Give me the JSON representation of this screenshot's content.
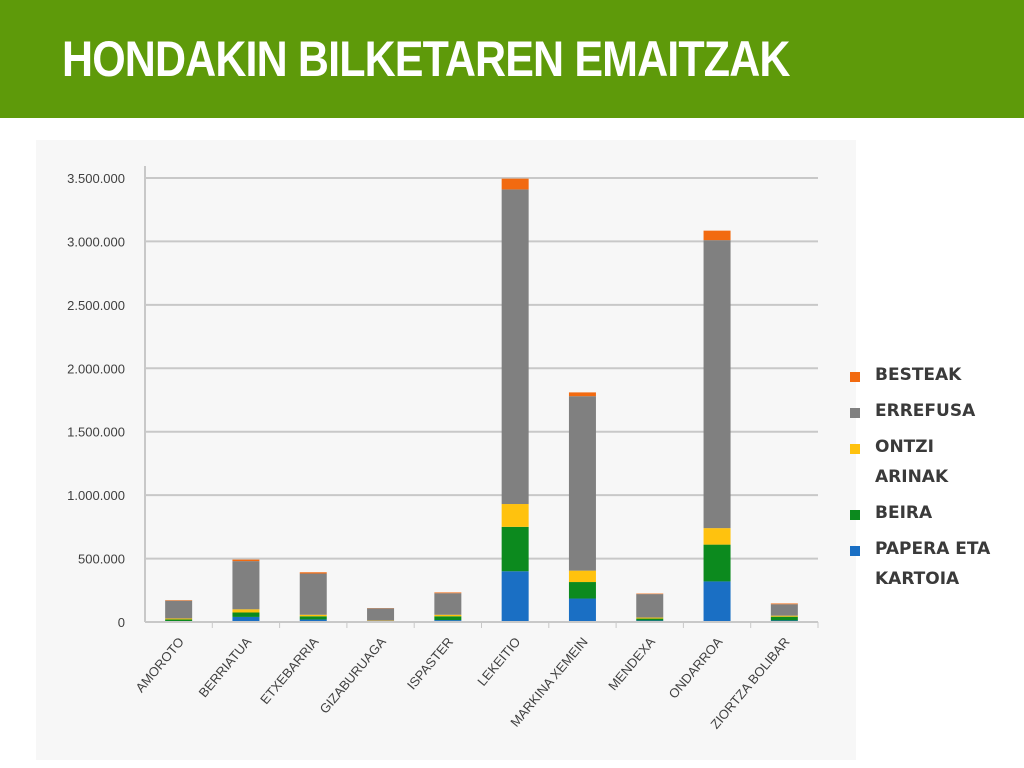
{
  "header": {
    "title": "HONDAKIN BILKETAREN EMAITZAK",
    "background_color": "#5e9a0a"
  },
  "chart_data": {
    "type": "bar",
    "stacked": true,
    "categories": [
      "AMOROTO",
      "BERRIATUA",
      "ETXEBARRIA",
      "GIZABURUAGA",
      "ISPASTER",
      "LEKEITIO",
      "MARKINA XEMEIN",
      "MENDEXA",
      "ONDARROA",
      "ZIORTZA BOLIBAR"
    ],
    "series": [
      {
        "name": "PAPERA ETA KARTOIA",
        "color": "#1a6fc4",
        "values": [
          5000,
          40000,
          20000,
          4000,
          15000,
          400000,
          185000,
          12000,
          320000,
          12000
        ]
      },
      {
        "name": "BEIRA",
        "color": "#0c8a1e",
        "values": [
          15000,
          35000,
          25000,
          4000,
          30000,
          350000,
          130000,
          15000,
          290000,
          30000
        ]
      },
      {
        "name": "ONTZI ARINAK",
        "color": "#ffc20e",
        "values": [
          8000,
          25000,
          12000,
          3000,
          12000,
          180000,
          90000,
          8000,
          130000,
          8000
        ]
      },
      {
        "name": "ERREFUSA",
        "color": "#808080",
        "values": [
          140000,
          380000,
          325000,
          97000,
          170000,
          2480000,
          1375000,
          185000,
          2270000,
          90000
        ]
      },
      {
        "name": "BESTEAK",
        "color": "#f26a10",
        "values": [
          4000,
          12000,
          10000,
          2000,
          6000,
          85000,
          30000,
          4000,
          75000,
          6000
        ]
      }
    ],
    "legend_order": [
      "BESTEAK",
      "ERREFUSA",
      "ONTZI ARINAK",
      "BEIRA",
      "PAPERA ETA KARTOIA"
    ],
    "legend_position": "right",
    "y_ticks": [
      "0",
      "500.000",
      "1.000.000",
      "1.500.000",
      "2.000.000",
      "2.500.000",
      "3.000.000",
      "3.500.000"
    ],
    "y_tick_values": [
      0,
      500000,
      1000000,
      1500000,
      2000000,
      2500000,
      3000000,
      3500000
    ],
    "ylim": [
      0,
      3500000
    ],
    "grid": true,
    "title": "",
    "xlabel": "",
    "ylabel": ""
  }
}
